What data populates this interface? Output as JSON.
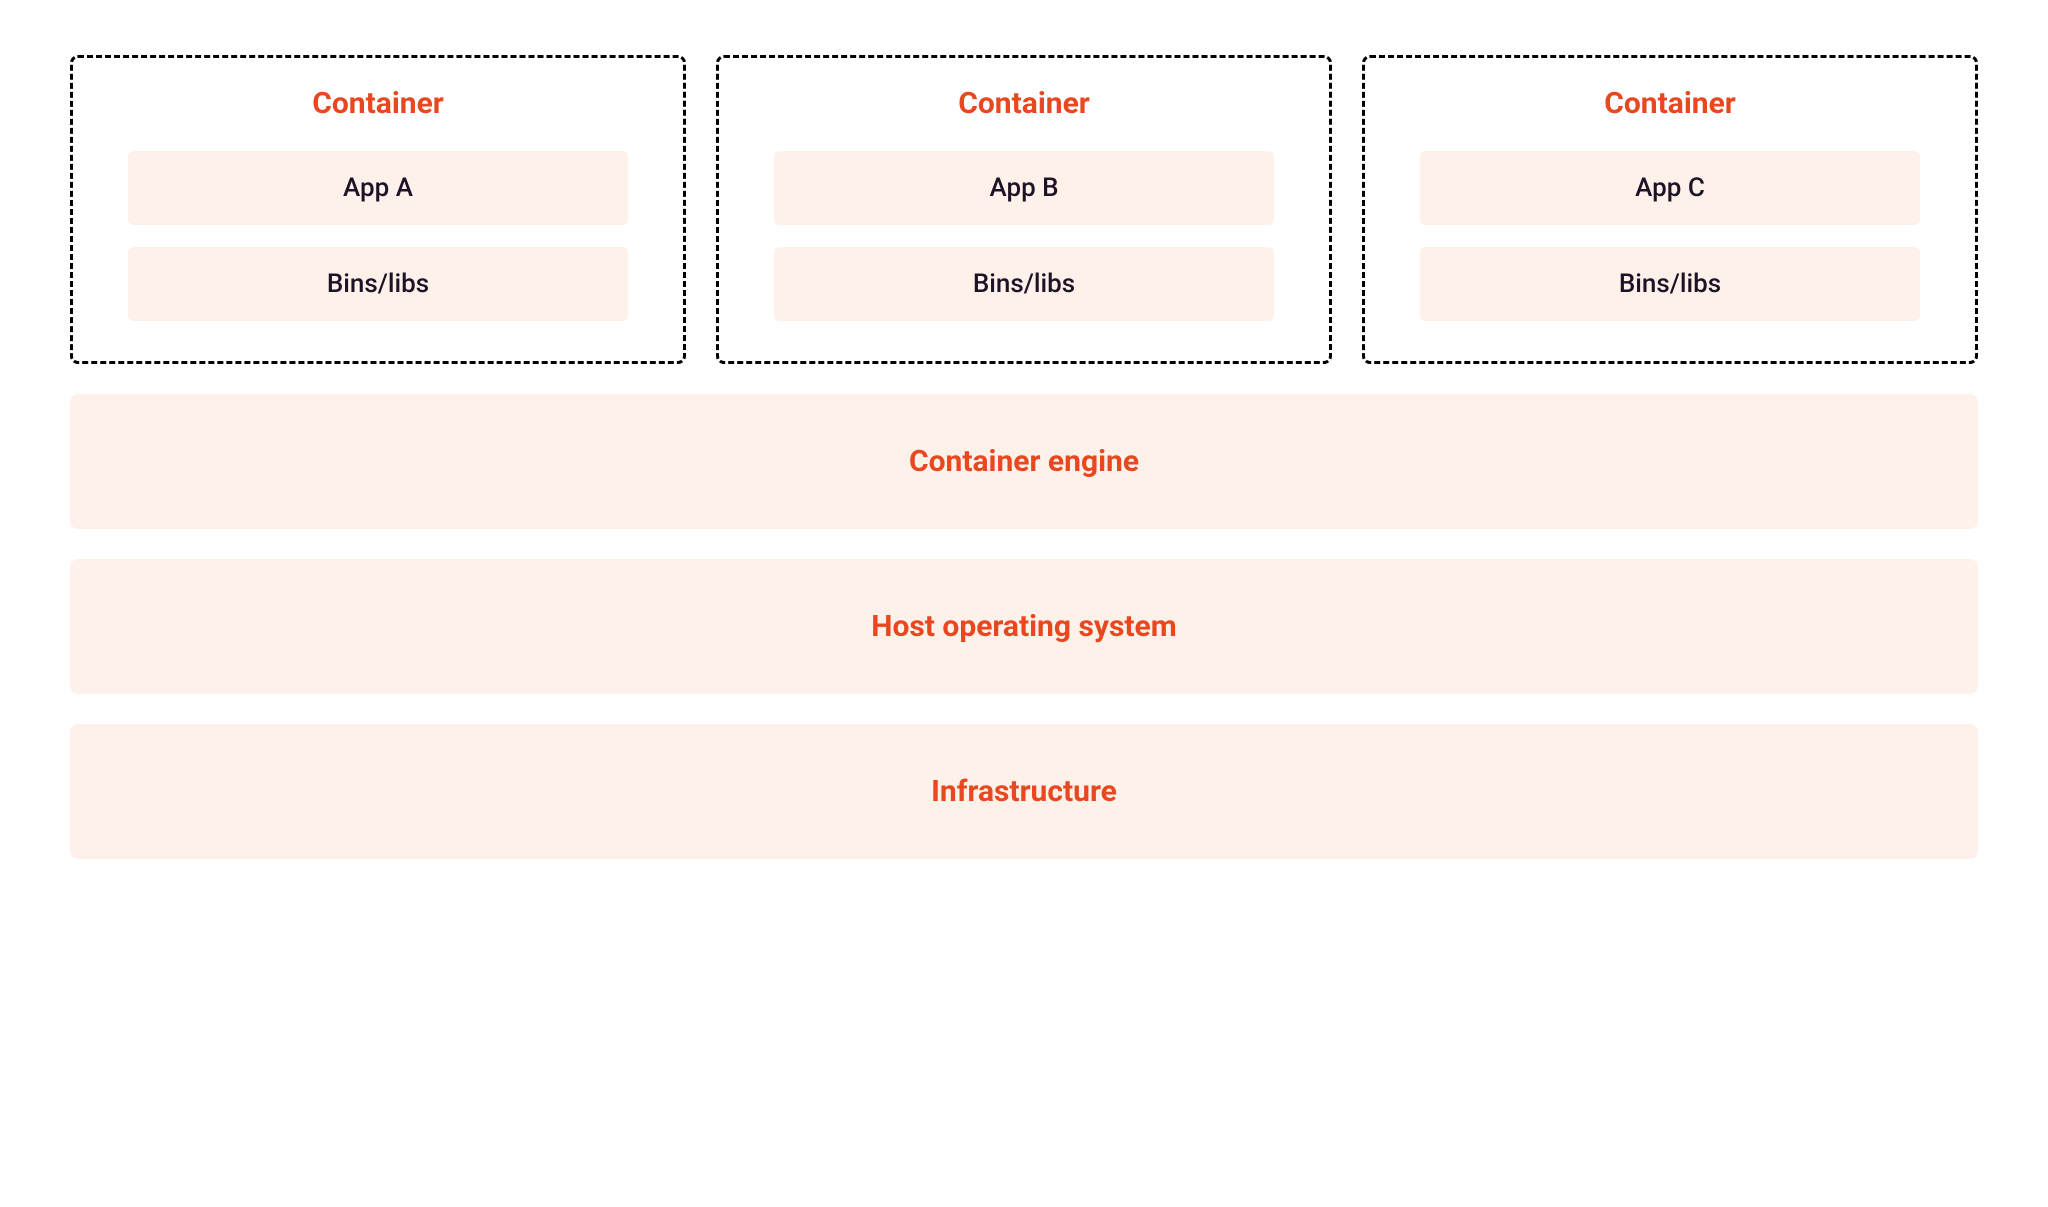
{
  "diagram": {
    "type": "infographic",
    "background_color": "#ffffff",
    "accent_color": "#e8471f",
    "box_bg_color": "#fdf1ea",
    "text_color": "#1e1227",
    "container_border_color": "#000000",
    "container_border_style": "dashed",
    "title_fontsize": 30,
    "label_fontsize": 26,
    "layer_fontsize": 30,
    "containers": [
      {
        "title": "Container",
        "items": [
          "App A",
          "Bins/libs"
        ]
      },
      {
        "title": "Container",
        "items": [
          "App B",
          "Bins/libs"
        ]
      },
      {
        "title": "Container",
        "items": [
          "App C",
          "Bins/libs"
        ]
      }
    ],
    "layers": [
      "Container engine",
      "Host operating system",
      "Infrastructure"
    ]
  }
}
